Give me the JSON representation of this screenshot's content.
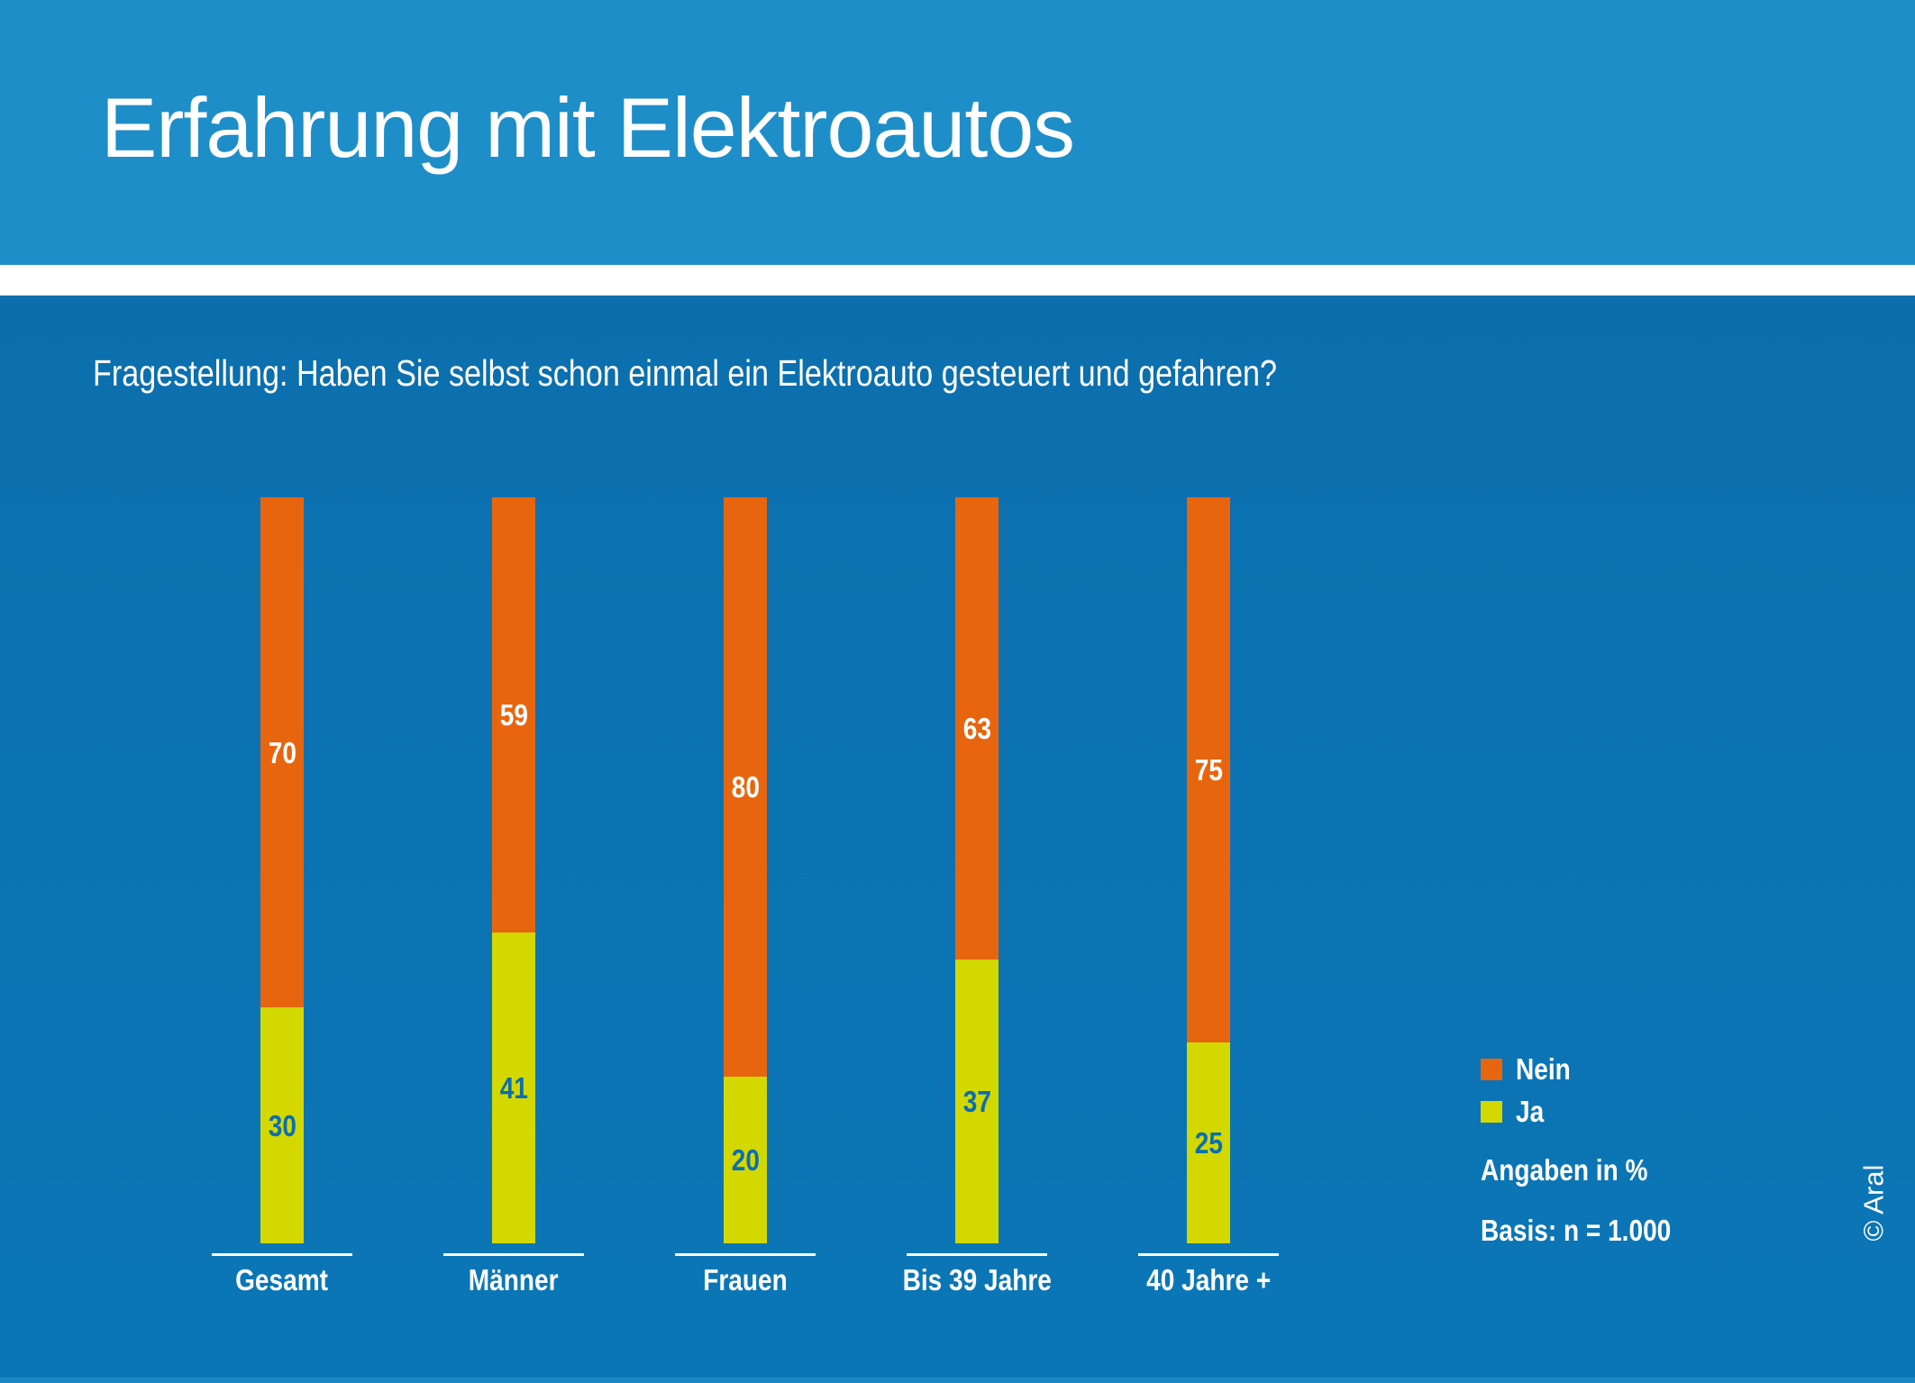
{
  "header": {
    "title": "Erfahrung mit Elektroautos"
  },
  "question": "Fragestellung: Haben Sie selbst schon einmal ein Elektroauto gesteuert und gefahren?",
  "legend": {
    "nein_label": "Nein",
    "ja_label": "Ja"
  },
  "notes": {
    "unit": "Angaben in %",
    "basis": "Basis: n = 1.000"
  },
  "copyright": "© Aral",
  "colors": {
    "header_blue": "#1E8EC8",
    "background_top": "#0D6BA9",
    "background_bottom": "#0B76B6",
    "divider_white": "#FFFFFF",
    "nein_orange": "#E8650F",
    "ja_yellow": "#D3D800",
    "ja_value_blue": "#0A6FB0",
    "text_white": "#FFFFFF",
    "footer_strip_blue": "#1B87C2"
  },
  "chart_data": {
    "type": "bar",
    "stacked": true,
    "orientation": "vertical",
    "unit": "percent",
    "title": "Erfahrung mit Elektroautos",
    "subtitle": "Fragestellung: Haben Sie selbst schon einmal ein Elektroauto gesteuert und gefahren?",
    "categories": [
      "Gesamt",
      "Männer",
      "Frauen",
      "Bis 39 Jahre",
      "40 Jahre +"
    ],
    "series": [
      {
        "name": "Nein",
        "color": "#E8650F",
        "label_color": "#FFFFFF",
        "values": [
          70,
          59,
          80,
          63,
          75
        ]
      },
      {
        "name": "Ja",
        "color": "#D3D800",
        "label_color": "#0A6FB0",
        "values": [
          30,
          41,
          20,
          37,
          25
        ]
      }
    ],
    "ylim": [
      0,
      100
    ],
    "grid": false,
    "value_labels": "inside-segment-center",
    "legend_position": "right",
    "annotations": [
      "Angaben in %",
      "Basis: n = 1.000"
    ]
  }
}
